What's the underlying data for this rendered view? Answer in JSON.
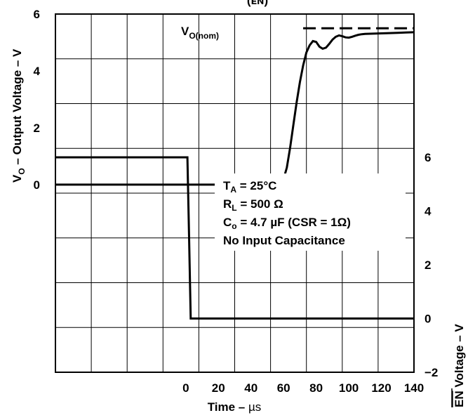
{
  "chart_data": {
    "type": "line",
    "title_fragment": "(ᴇɴ)",
    "grid": true,
    "x": {
      "label_main": "Time – ",
      "label_unit": "µs",
      "range": [
        -80,
        140
      ],
      "ticks": [
        0,
        20,
        40,
        60,
        80,
        100,
        120,
        140
      ]
    },
    "y_left": {
      "label_v": "V",
      "label_sub": "O",
      "label_rest": " – Output Voltage – V",
      "range": [
        -6.6,
        6
      ],
      "ticks": [
        0,
        2,
        4,
        6
      ]
    },
    "y_right": {
      "label_en": "EN",
      "label_rest": " Voltage – V",
      "range": [
        -2,
        11.333
      ],
      "ticks": [
        -2,
        0,
        2,
        4,
        6
      ]
    },
    "nominal": {
      "label_main": "V",
      "label_sub": "O(nom)",
      "value": 5.5,
      "x_start": 72,
      "x_end": 140
    },
    "conditions": [
      {
        "main": "T",
        "sub": "A",
        "rest": " = 25°C"
      },
      {
        "main": "R",
        "sub": "L",
        "rest": " = 500 Ω"
      },
      {
        "main": "C",
        "sub": "o",
        "rest": " = 4.7 µF (CSR = 1Ω)"
      },
      {
        "main": "No Input Capacitance",
        "sub": "",
        "rest": ""
      }
    ],
    "series": [
      {
        "axis": "left",
        "x": [
          -80,
          58,
          60,
          62,
          64,
          66,
          68,
          70,
          72,
          74,
          76,
          78,
          80,
          82,
          84,
          86,
          88,
          90,
          92,
          94,
          96,
          98,
          100,
          102,
          104,
          106,
          108,
          110,
          115,
          120,
          125,
          130,
          135,
          140
        ],
        "y": [
          0,
          0,
          0.2,
          0.6,
          1.3,
          2.1,
          2.9,
          3.6,
          4.2,
          4.65,
          4.9,
          5.05,
          5.02,
          4.85,
          4.78,
          4.82,
          4.95,
          5.1,
          5.2,
          5.25,
          5.22,
          5.18,
          5.17,
          5.2,
          5.24,
          5.27,
          5.29,
          5.3,
          5.31,
          5.32,
          5.33,
          5.34,
          5.35,
          5.36
        ]
      },
      {
        "axis": "right",
        "x": [
          -80,
          1,
          2,
          3,
          140
        ],
        "y": [
          6,
          6,
          3,
          0,
          0
        ]
      }
    ]
  }
}
